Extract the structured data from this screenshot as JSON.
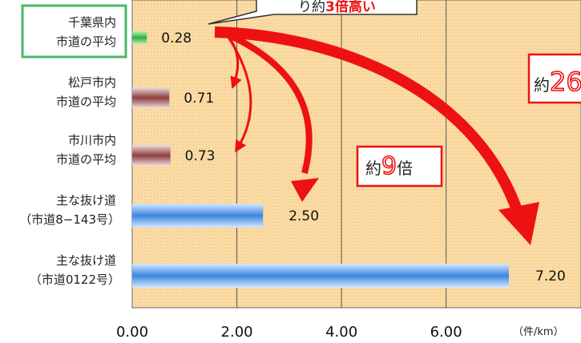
{
  "chart_data": {
    "type": "bar",
    "orientation": "horizontal",
    "categories": [
      [
        "千葉県内",
        "市道の平均"
      ],
      [
        "松戸市内",
        "市道の平均"
      ],
      [
        "市川市内",
        "市道の平均"
      ],
      [
        "主な抜け道",
        "（市道8−143号）"
      ],
      [
        "主な抜け道",
        "（市道0122号）"
      ]
    ],
    "values": [
      0.28,
      0.71,
      0.73,
      2.5,
      7.2
    ],
    "value_labels": [
      "0.28",
      "0.71",
      "0.73",
      "2.50",
      "7.20"
    ],
    "bar_colors": [
      "#6fd26f",
      "#a86a6a",
      "#a86a6a",
      "#5a9be8",
      "#5a9be8"
    ],
    "highlighted_category_index": 0,
    "highlight_color": "#48b868",
    "xlim": [
      0,
      8
    ],
    "x_ticks": [
      0,
      2,
      4,
      6
    ],
    "x_tick_labels": [
      "0.00",
      "2.00",
      "4.00",
      "6.00"
    ],
    "unit_label": "（件/km）",
    "grid": true,
    "plot_background": "#f9d9a2",
    "annotations": {
      "top_callout_prefix": "り約",
      "top_callout_highlight": "3倍高い",
      "nine_times_prefix": "約",
      "nine_times_number": "9",
      "nine_times_suffix": "倍",
      "twenty_six_prefix": "約",
      "twenty_six_number": "26"
    },
    "arrow_color": "#ee1111"
  }
}
